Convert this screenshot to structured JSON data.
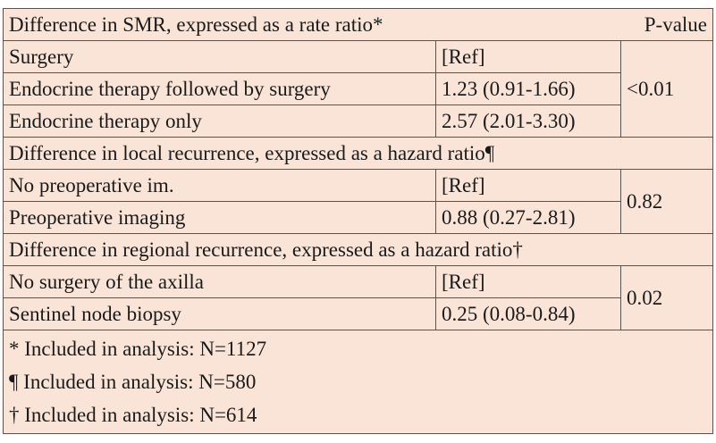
{
  "header": {
    "title": "Difference in SMR, expressed as a rate ratio*",
    "pvalue_label": "P-value"
  },
  "sections": [
    {
      "title": null,
      "rows": [
        {
          "label": "Surgery",
          "value": "[Ref]"
        },
        {
          "label": "Endocrine therapy followed by surgery",
          "value": "1.23 (0.91-1.66)"
        },
        {
          "label": "Endocrine therapy only",
          "value": "2.57 (2.01-3.30)"
        }
      ],
      "pvalue": "<0.01"
    },
    {
      "title": "Difference in local recurrence, expressed as a hazard ratio¶",
      "rows": [
        {
          "label": "No preoperative im.",
          "value": "[Ref]"
        },
        {
          "label": "Preoperative imaging",
          "value": "0.88 (0.27-2.81)"
        }
      ],
      "pvalue": "0.82"
    },
    {
      "title": "Difference in regional recurrence, expressed as a hazard ratio†",
      "rows": [
        {
          "label": "No surgery of the axilla",
          "value": "[Ref]"
        },
        {
          "label": "Sentinel node biopsy",
          "value": "0.25 (0.08-0.84)"
        }
      ],
      "pvalue": "0.02"
    }
  ],
  "footnotes": [
    "* Included in analysis: N=1127",
    "¶ Included in analysis: N=580",
    "† Included in analysis: N=614"
  ],
  "colors": {
    "background": "#fae4d8",
    "border": "#555555"
  }
}
